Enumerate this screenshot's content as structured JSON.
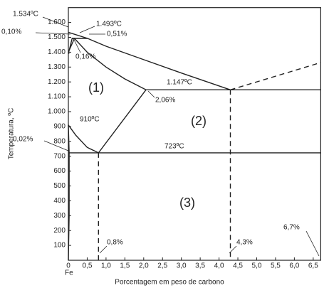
{
  "chart_data": {
    "type": "line",
    "xlabel": "Porcentagem em peso de carbono",
    "ylabel": "Temperatura, ºC",
    "xlim": [
      0,
      6.7
    ],
    "ylim": [
      0,
      1700
    ],
    "xticks": [
      0,
      {
        "value": 0.5,
        "label": "0,5"
      },
      {
        "value": 1,
        "label": "1,0"
      },
      {
        "value": 1.5,
        "label": "1,5"
      },
      {
        "value": 2,
        "label": "2,0"
      },
      {
        "value": 2.5,
        "label": "2,5"
      },
      {
        "value": 3,
        "label": "3,0"
      },
      {
        "value": 3.5,
        "label": "3,5"
      },
      {
        "value": 4,
        "label": "4,0"
      },
      {
        "value": 4.5,
        "label": "4,5"
      },
      {
        "value": 5,
        "label": "5,0"
      },
      {
        "value": 5.5,
        "label": "5,5"
      },
      {
        "value": 6,
        "label": "6,0"
      },
      {
        "value": 6.5,
        "label": "6,5"
      }
    ],
    "yticks": [
      100,
      200,
      300,
      400,
      500,
      600,
      700,
      800,
      900,
      {
        "value": 1000,
        "label": "1.000"
      },
      {
        "value": 1100,
        "label": "1.100"
      },
      {
        "value": 1200,
        "label": "1.200"
      },
      {
        "value": 1300,
        "label": "1.300"
      },
      {
        "value": 1400,
        "label": "1.400"
      },
      {
        "value": 1500,
        "label": "1.500"
      },
      {
        "value": 1600,
        "label": "1.600"
      }
    ],
    "grid": false,
    "series": [
      {
        "color": "#222222",
        "style": "solid",
        "x": [
          0,
          0.51,
          1,
          2,
          3,
          4.3
        ],
        "values": [
          1534,
          1493,
          1440,
          1350,
          1260,
          1147
        ]
      },
      {
        "color": "#222222",
        "style": "dashed",
        "x": [
          4.3,
          6.7
        ],
        "values": [
          1147,
          1330
        ]
      },
      {
        "color": "#222222",
        "style": "solid",
        "x": [
          0.16,
          0.5,
          1,
          1.5,
          2.06
        ],
        "values": [
          1493,
          1400,
          1300,
          1220,
          1147
        ]
      },
      {
        "color": "#222222",
        "style": "solid",
        "x": [
          2.06,
          6.7
        ],
        "values": [
          1147,
          1147
        ]
      },
      {
        "color": "#222222",
        "style": "solid",
        "x": [
          0.1,
          0.51
        ],
        "values": [
          1493,
          1493
        ]
      },
      {
        "color": "#222222",
        "style": "solid",
        "x": [
          0,
          0.1,
          0.16,
          0,
          0.02
        ],
        "values": [
          1390,
          1493,
          1493,
          1400,
          1390
        ]
      },
      {
        "color": "#222222",
        "style": "solid",
        "x": [
          0,
          0.2,
          0.5,
          0.8,
          2.06
        ],
        "values": [
          910,
          840,
          760,
          723,
          1147
        ]
      },
      {
        "color": "#222222",
        "style": "solid",
        "x": [
          0,
          0.02,
          0.02,
          0
        ],
        "values": [
          910,
          723,
          300,
          0
        ]
      },
      {
        "color": "#222222",
        "style": "solid",
        "x": [
          0.02,
          6.7
        ],
        "values": [
          723,
          723
        ]
      },
      {
        "color": "#222222",
        "style": "dashed",
        "x": [
          0.8,
          0.8
        ],
        "values": [
          723,
          0
        ]
      },
      {
        "color": "#222222",
        "style": "dashed",
        "x": [
          4.3,
          4.3
        ],
        "values": [
          1147,
          0
        ]
      }
    ],
    "annotations": [
      "1.534ºC",
      "1.493ºC",
      "0,10%",
      "0,51%",
      "0,16%",
      "1.147ºC",
      "2,06%",
      "910ºC",
      "0,02%",
      "723ºC",
      "(1)",
      "(2)",
      "(3)",
      "0,8%",
      "4,3%",
      "6,7%",
      "Fe"
    ]
  }
}
